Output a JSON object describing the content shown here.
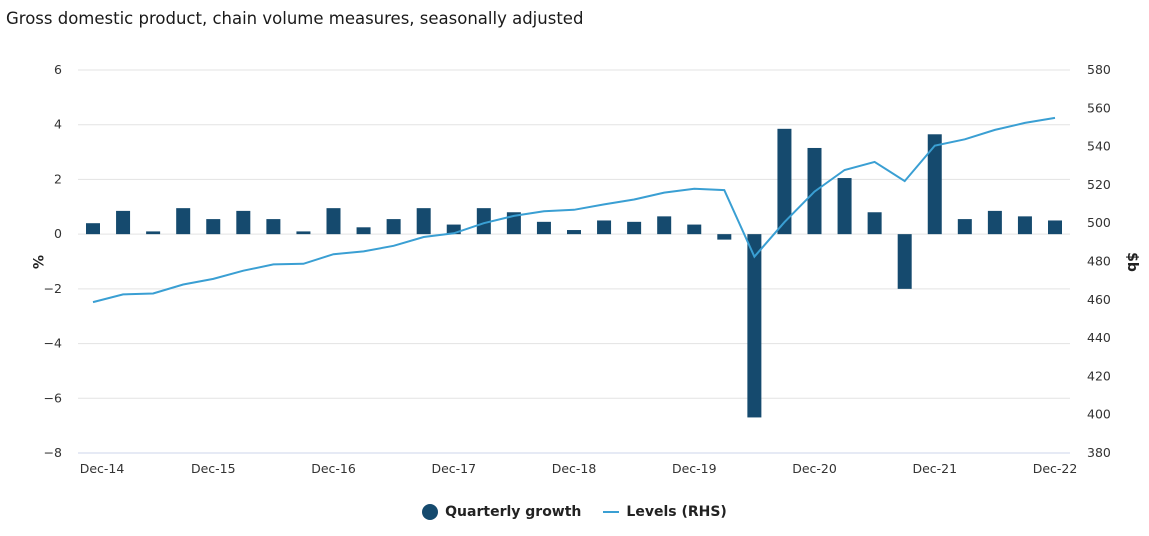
{
  "colors": {
    "bar": "#154a6e",
    "line": "#3a9fd3",
    "grid": "#e3e3e3",
    "axis": "#ccd6eb"
  },
  "chart_data": {
    "type": "bar+line",
    "title": "Gross domestic product, chain volume measures, seasonally adjusted",
    "left_axis": {
      "label": "%",
      "min": -8,
      "max": 6,
      "ticks": [
        "6",
        "4",
        "2",
        "0",
        "−2",
        "−4",
        "−6",
        "−8"
      ],
      "tick_values": [
        6,
        4,
        2,
        0,
        -2,
        -4,
        -6,
        -8
      ]
    },
    "right_axis": {
      "label": "$b",
      "min": 380,
      "max": 580,
      "ticks": [
        "580",
        "560",
        "540",
        "520",
        "500",
        "480",
        "460",
        "440",
        "420",
        "400",
        "380"
      ],
      "tick_values": [
        580,
        560,
        540,
        520,
        500,
        480,
        460,
        440,
        420,
        400,
        380
      ]
    },
    "x_tick_labels": [
      "Dec-14",
      "Dec-15",
      "Dec-16",
      "Dec-17",
      "Dec-18",
      "Dec-19",
      "Dec-20",
      "Dec-21",
      "Dec-22"
    ],
    "x_tick_index": [
      0,
      4,
      8,
      12,
      16,
      20,
      24,
      28,
      32
    ],
    "categories": [
      "Dec-14",
      "Mar-15",
      "Jun-15",
      "Sep-15",
      "Dec-15",
      "Mar-16",
      "Jun-16",
      "Sep-16",
      "Dec-16",
      "Mar-17",
      "Jun-17",
      "Sep-17",
      "Dec-17",
      "Mar-18",
      "Jun-18",
      "Sep-18",
      "Dec-18",
      "Mar-19",
      "Jun-19",
      "Sep-19",
      "Dec-19",
      "Mar-20",
      "Jun-20",
      "Sep-20",
      "Dec-20",
      "Mar-21",
      "Jun-21",
      "Sep-21",
      "Dec-21",
      "Mar-22",
      "Jun-22",
      "Sep-22",
      "Dec-22"
    ],
    "series": [
      {
        "name": "Quarterly growth",
        "type": "bar",
        "axis": "left",
        "values": [
          0.4,
          0.85,
          0.1,
          0.95,
          0.55,
          0.85,
          0.55,
          0.1,
          0.95,
          0.25,
          0.55,
          0.95,
          0.35,
          0.95,
          0.8,
          0.45,
          0.15,
          0.5,
          0.45,
          0.65,
          0.35,
          -0.2,
          -6.7,
          3.85,
          3.15,
          2.05,
          0.8,
          -2.0,
          3.65,
          0.55,
          0.85,
          0.65,
          0.5
        ]
      },
      {
        "name": "Levels (RHS)",
        "type": "line",
        "axis": "right",
        "values": [
          458.8,
          462.8,
          463.3,
          468.0,
          470.9,
          475.2,
          478.5,
          478.8,
          483.8,
          485.3,
          488.2,
          492.8,
          494.7,
          500.0,
          503.8,
          506.2,
          507.0,
          509.8,
          512.4,
          516.0,
          518.0,
          517.3,
          482.5,
          500.5,
          516.5,
          527.8,
          532.0,
          522.0,
          540.5,
          543.8,
          548.7,
          552.4,
          555.0
        ]
      }
    ]
  },
  "legend": {
    "bar_label": "Quarterly growth",
    "line_label": "Levels (RHS)"
  }
}
